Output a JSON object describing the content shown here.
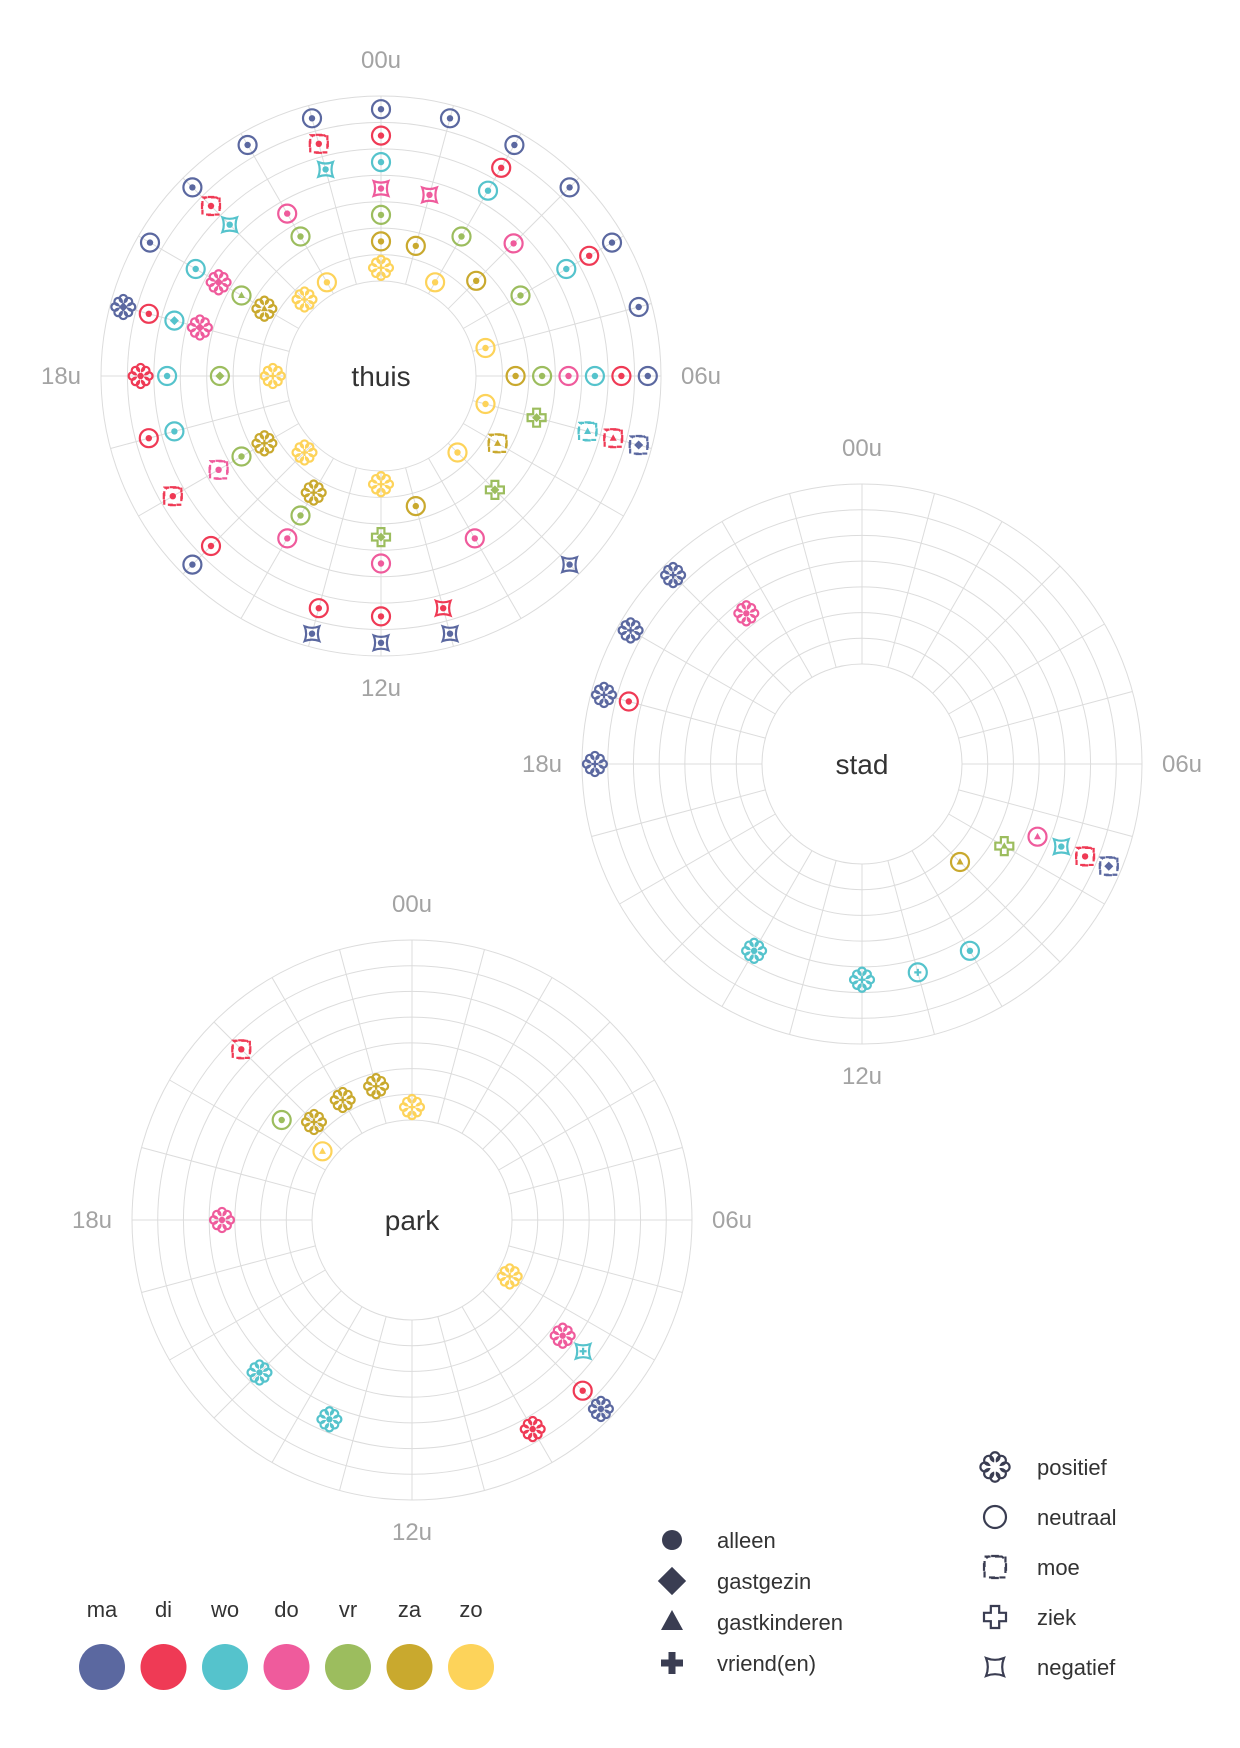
{
  "chart_data": {
    "type": "scatter",
    "description_of_axes": "polar: angle = hour of day, ring = day of week",
    "colors": {
      "ma": "#5b68a0",
      "di": "#ef3a55",
      "wo": "#55c3cc",
      "do": "#ef5b9c",
      "vr": "#9cbd5e",
      "za": "#c9a92e",
      "zo": "#fdd35a"
    },
    "day_order": [
      "ma",
      "di",
      "wo",
      "do",
      "vr",
      "za",
      "zo"
    ],
    "charts": [
      {
        "label": "thuis",
        "hour_labels": {
          "00": "00u",
          "06": "06u",
          "12": "12u",
          "18": "18u"
        },
        "points": [
          {
            "day": "ma",
            "hour": 0,
            "mood": "neutraal",
            "company": "alleen"
          },
          {
            "day": "ma",
            "hour": 1,
            "mood": "neutraal",
            "company": "alleen"
          },
          {
            "day": "ma",
            "hour": 2,
            "mood": "neutraal",
            "company": "alleen"
          },
          {
            "day": "ma",
            "hour": 3,
            "mood": "neutraal",
            "company": "alleen"
          },
          {
            "day": "ma",
            "hour": 4,
            "mood": "neutraal",
            "company": "alleen"
          },
          {
            "day": "ma",
            "hour": 5,
            "mood": "neutraal",
            "company": "alleen"
          },
          {
            "day": "ma",
            "hour": 6,
            "mood": "neutraal",
            "company": "alleen"
          },
          {
            "day": "ma",
            "hour": 7,
            "mood": "moe",
            "company": "gastgezin"
          },
          {
            "day": "ma",
            "hour": 9,
            "mood": "negatief",
            "company": "alleen"
          },
          {
            "day": "ma",
            "hour": 11,
            "mood": "negatief",
            "company": "alleen"
          },
          {
            "day": "ma",
            "hour": 12,
            "mood": "negatief",
            "company": "alleen"
          },
          {
            "day": "ma",
            "hour": 13,
            "mood": "negatief",
            "company": "alleen"
          },
          {
            "day": "ma",
            "hour": 15,
            "mood": "neutraal",
            "company": "alleen"
          },
          {
            "day": "ma",
            "hour": 19,
            "mood": "positief",
            "company": "gastgezin"
          },
          {
            "day": "ma",
            "hour": 20,
            "mood": "neutraal",
            "company": "alleen"
          },
          {
            "day": "ma",
            "hour": 21,
            "mood": "neutraal",
            "company": "alleen"
          },
          {
            "day": "ma",
            "hour": 22,
            "mood": "neutraal",
            "company": "alleen"
          },
          {
            "day": "ma",
            "hour": 23,
            "mood": "neutraal",
            "company": "alleen"
          },
          {
            "day": "di",
            "hour": 0,
            "mood": "neutraal",
            "company": "alleen"
          },
          {
            "day": "di",
            "hour": 2,
            "mood": "neutraal",
            "company": "alleen"
          },
          {
            "day": "di",
            "hour": 4,
            "mood": "neutraal",
            "company": "alleen"
          },
          {
            "day": "di",
            "hour": 6,
            "mood": "neutraal",
            "company": "alleen"
          },
          {
            "day": "di",
            "hour": 7,
            "mood": "moe",
            "company": "gastkinderen"
          },
          {
            "day": "di",
            "hour": 11,
            "mood": "negatief",
            "company": "alleen"
          },
          {
            "day": "di",
            "hour": 12,
            "mood": "neutraal",
            "company": "alleen"
          },
          {
            "day": "di",
            "hour": 13,
            "mood": "neutraal",
            "company": "alleen"
          },
          {
            "day": "di",
            "hour": 15,
            "mood": "neutraal",
            "company": "alleen"
          },
          {
            "day": "di",
            "hour": 16,
            "mood": "moe",
            "company": "alleen"
          },
          {
            "day": "di",
            "hour": 17,
            "mood": "neutraal",
            "company": "alleen"
          },
          {
            "day": "di",
            "hour": 18,
            "mood": "positief",
            "company": "alleen"
          },
          {
            "day": "di",
            "hour": 19,
            "mood": "neutraal",
            "company": "alleen"
          },
          {
            "day": "di",
            "hour": 21,
            "mood": "moe",
            "company": "alleen"
          },
          {
            "day": "di",
            "hour": 23,
            "mood": "moe",
            "company": "alleen"
          },
          {
            "day": "wo",
            "hour": 0,
            "mood": "neutraal",
            "company": "alleen"
          },
          {
            "day": "wo",
            "hour": 2,
            "mood": "neutraal",
            "company": "alleen"
          },
          {
            "day": "wo",
            "hour": 4,
            "mood": "neutraal",
            "company": "alleen"
          },
          {
            "day": "wo",
            "hour": 6,
            "mood": "neutraal",
            "company": "alleen"
          },
          {
            "day": "wo",
            "hour": 7,
            "mood": "moe",
            "company": "gastkinderen"
          },
          {
            "day": "wo",
            "hour": 17,
            "mood": "neutraal",
            "company": "alleen"
          },
          {
            "day": "wo",
            "hour": 18,
            "mood": "neutraal",
            "company": "alleen"
          },
          {
            "day": "wo",
            "hour": 19,
            "mood": "neutraal",
            "company": "gastgezin"
          },
          {
            "day": "wo",
            "hour": 20,
            "mood": "neutraal",
            "company": "alleen"
          },
          {
            "day": "wo",
            "hour": 21,
            "mood": "negatief",
            "company": "alleen"
          },
          {
            "day": "wo",
            "hour": 23,
            "mood": "negatief",
            "company": "alleen"
          },
          {
            "day": "do",
            "hour": 0,
            "mood": "negatief",
            "company": "alleen"
          },
          {
            "day": "do",
            "hour": 1,
            "mood": "negatief",
            "company": "alleen"
          },
          {
            "day": "do",
            "hour": 3,
            "mood": "neutraal",
            "company": "alleen"
          },
          {
            "day": "do",
            "hour": 6,
            "mood": "neutraal",
            "company": "alleen"
          },
          {
            "day": "do",
            "hour": 10,
            "mood": "neutraal",
            "company": "alleen"
          },
          {
            "day": "do",
            "hour": 12,
            "mood": "neutraal",
            "company": "alleen"
          },
          {
            "day": "do",
            "hour": 14,
            "mood": "neutraal",
            "company": "alleen"
          },
          {
            "day": "do",
            "hour": 16,
            "mood": "moe",
            "company": "alleen"
          },
          {
            "day": "do",
            "hour": 19,
            "mood": "positief",
            "company": "gastgezin"
          },
          {
            "day": "do",
            "hour": 20,
            "mood": "positief",
            "company": "gastgezin"
          },
          {
            "day": "do",
            "hour": 22,
            "mood": "neutraal",
            "company": "alleen"
          },
          {
            "day": "vr",
            "hour": 0,
            "mood": "neutraal",
            "company": "alleen"
          },
          {
            "day": "vr",
            "hour": 2,
            "mood": "neutraal",
            "company": "alleen"
          },
          {
            "day": "vr",
            "hour": 4,
            "mood": "neutraal",
            "company": "alleen"
          },
          {
            "day": "vr",
            "hour": 6,
            "mood": "neutraal",
            "company": "alleen"
          },
          {
            "day": "vr",
            "hour": 7,
            "mood": "ziek",
            "company": "gastgezin"
          },
          {
            "day": "vr",
            "hour": 9,
            "mood": "ziek",
            "company": "gastgezin"
          },
          {
            "day": "vr",
            "hour": 12,
            "mood": "ziek",
            "company": "gastgezin"
          },
          {
            "day": "vr",
            "hour": 14,
            "mood": "neutraal",
            "company": "alleen"
          },
          {
            "day": "vr",
            "hour": 16,
            "mood": "neutraal",
            "company": "alleen"
          },
          {
            "day": "vr",
            "hour": 18,
            "mood": "neutraal",
            "company": "gastgezin"
          },
          {
            "day": "vr",
            "hour": 20,
            "mood": "neutraal",
            "company": "gastkinderen"
          },
          {
            "day": "vr",
            "hour": 22,
            "mood": "neutraal",
            "company": "alleen"
          },
          {
            "day": "za",
            "hour": 0,
            "mood": "neutraal",
            "company": "alleen"
          },
          {
            "day": "za",
            "hour": 1,
            "mood": "neutraal",
            "company": "alleen"
          },
          {
            "day": "za",
            "hour": 3,
            "mood": "neutraal",
            "company": "alleen"
          },
          {
            "day": "za",
            "hour": 6,
            "mood": "neutraal",
            "company": "alleen"
          },
          {
            "day": "za",
            "hour": 8,
            "mood": "moe",
            "company": "gastkinderen"
          },
          {
            "day": "za",
            "hour": 11,
            "mood": "neutraal",
            "company": "alleen"
          },
          {
            "day": "za",
            "hour": 14,
            "mood": "positief",
            "company": "vriend(en)"
          },
          {
            "day": "za",
            "hour": 16,
            "mood": "positief",
            "company": "vriend(en)"
          },
          {
            "day": "za",
            "hour": 20,
            "mood": "positief",
            "company": "gastkinderen"
          },
          {
            "day": "zo",
            "hour": 0,
            "mood": "positief",
            "company": "vriend(en)"
          },
          {
            "day": "zo",
            "hour": 2,
            "mood": "neutraal",
            "company": "alleen"
          },
          {
            "day": "zo",
            "hour": 5,
            "mood": "neutraal",
            "company": "alleen"
          },
          {
            "day": "zo",
            "hour": 7,
            "mood": "neutraal",
            "company": "alleen"
          },
          {
            "day": "zo",
            "hour": 9,
            "mood": "neutraal",
            "company": "alleen"
          },
          {
            "day": "zo",
            "hour": 12,
            "mood": "positief",
            "company": "vriend(en)"
          },
          {
            "day": "zo",
            "hour": 15,
            "mood": "positief",
            "company": "vriend(en)"
          },
          {
            "day": "zo",
            "hour": 18,
            "mood": "positief",
            "company": "vriend(en)"
          },
          {
            "day": "zo",
            "hour": 21,
            "mood": "positief",
            "company": "vriend(en)"
          },
          {
            "day": "zo",
            "hour": 22,
            "mood": "neutraal",
            "company": "alleen"
          }
        ]
      },
      {
        "label": "stad",
        "hour_labels": {
          "00": "00u",
          "06": "06u",
          "12": "12u",
          "18": "18u"
        },
        "points": [
          {
            "day": "ma",
            "hour": 18,
            "mood": "positief",
            "company": "vriend(en)"
          },
          {
            "day": "ma",
            "hour": 19,
            "mood": "positief",
            "company": "vriend(en)"
          },
          {
            "day": "ma",
            "hour": 20,
            "mood": "positief",
            "company": "vriend(en)"
          },
          {
            "day": "ma",
            "hour": 21,
            "mood": "positief",
            "company": "vriend(en)"
          },
          {
            "day": "ma",
            "hour": 7.5,
            "mood": "moe",
            "company": "gastgezin"
          },
          {
            "day": "di",
            "hour": 19,
            "mood": "neutraal",
            "company": "alleen"
          },
          {
            "day": "di",
            "hour": 7.5,
            "mood": "moe",
            "company": "alleen"
          },
          {
            "day": "wo",
            "hour": 7.5,
            "mood": "negatief",
            "company": "alleen"
          },
          {
            "day": "wo",
            "hour": 10,
            "mood": "neutraal",
            "company": "alleen"
          },
          {
            "day": "wo",
            "hour": 11,
            "mood": "neutraal",
            "company": "vriend(en)"
          },
          {
            "day": "wo",
            "hour": 12,
            "mood": "positief",
            "company": "vriend(en)"
          },
          {
            "day": "wo",
            "hour": 14,
            "mood": "positief",
            "company": "alleen"
          },
          {
            "day": "do",
            "hour": 21.5,
            "mood": "positief",
            "company": "alleen"
          },
          {
            "day": "do",
            "hour": 7.5,
            "mood": "neutraal",
            "company": "gastkinderen"
          },
          {
            "day": "vr",
            "hour": 8,
            "mood": "ziek",
            "company": "gastkinderen"
          },
          {
            "day": "za",
            "hour": 9,
            "mood": "neutraal",
            "company": "gastkinderen"
          }
        ]
      },
      {
        "label": "park",
        "hour_labels": {
          "00": "00u",
          "06": "06u",
          "12": "12u",
          "18": "18u"
        },
        "points": [
          {
            "day": "ma",
            "hour": 9,
            "mood": "positief",
            "company": "alleen"
          },
          {
            "day": "di",
            "hour": 21,
            "mood": "moe",
            "company": "alleen"
          },
          {
            "day": "di",
            "hour": 9,
            "mood": "neutraal",
            "company": "alleen"
          },
          {
            "day": "di",
            "hour": 10,
            "mood": "positief",
            "company": "alleen"
          },
          {
            "day": "wo",
            "hour": 8.5,
            "mood": "negatief",
            "company": "vriend(en)"
          },
          {
            "day": "wo",
            "hour": 13.5,
            "mood": "positief",
            "company": "alleen"
          },
          {
            "day": "wo",
            "hour": 15,
            "mood": "positief",
            "company": "alleen"
          },
          {
            "day": "do",
            "hour": 18,
            "mood": "positief",
            "company": "alleen"
          },
          {
            "day": "do",
            "hour": 8.5,
            "mood": "positief",
            "company": "alleen"
          },
          {
            "day": "vr",
            "hour": 20.5,
            "mood": "neutraal",
            "company": "alleen"
          },
          {
            "day": "za",
            "hour": 21,
            "mood": "positief",
            "company": "vriend(en)"
          },
          {
            "day": "za",
            "hour": 22,
            "mood": "positief",
            "company": "vriend(en)"
          },
          {
            "day": "za",
            "hour": 23,
            "mood": "positief",
            "company": "vriend(en)"
          },
          {
            "day": "zo",
            "hour": 20.5,
            "mood": "neutraal",
            "company": "gastkinderen"
          },
          {
            "day": "zo",
            "hour": 0,
            "mood": "positief",
            "company": "vriend(en)"
          },
          {
            "day": "zo",
            "hour": 8,
            "mood": "positief",
            "company": "vriend(en)"
          }
        ]
      }
    ]
  },
  "legend": {
    "company": [
      {
        "key": "alleen",
        "label": "alleen"
      },
      {
        "key": "gastgezin",
        "label": "gastgezin"
      },
      {
        "key": "gastkinderen",
        "label": "gastkinderen"
      },
      {
        "key": "vriend(en)",
        "label": "vriend(en)"
      }
    ],
    "mood": [
      {
        "key": "positief",
        "label": "positief"
      },
      {
        "key": "neutraal",
        "label": "neutraal"
      },
      {
        "key": "moe",
        "label": "moe"
      },
      {
        "key": "ziek",
        "label": "ziek"
      },
      {
        "key": "negatief",
        "label": "negatief"
      }
    ],
    "days": [
      {
        "key": "ma",
        "label": "ma"
      },
      {
        "key": "di",
        "label": "di"
      },
      {
        "key": "wo",
        "label": "wo"
      },
      {
        "key": "do",
        "label": "do"
      },
      {
        "key": "vr",
        "label": "vr"
      },
      {
        "key": "za",
        "label": "za"
      },
      {
        "key": "zo",
        "label": "zo"
      }
    ]
  }
}
